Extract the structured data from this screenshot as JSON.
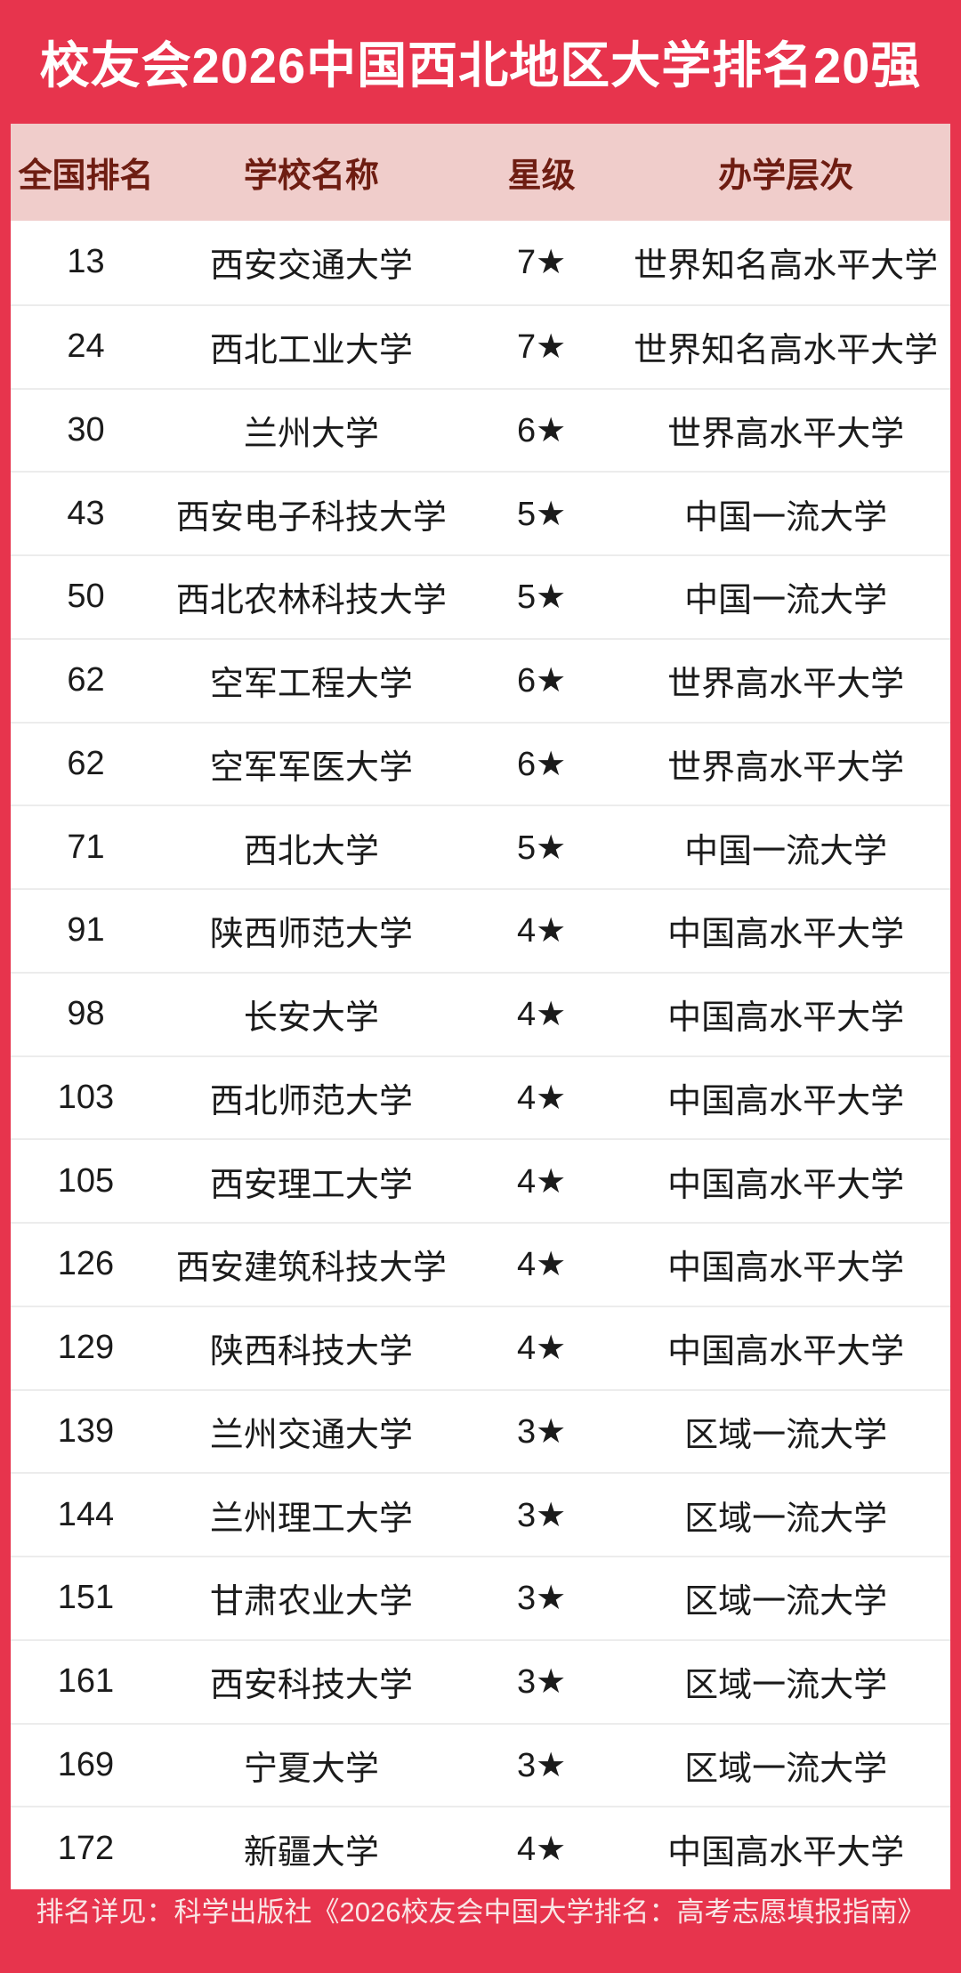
{
  "colors": {
    "primary_red": "#E7344D",
    "header_pink": "#F0CDCB",
    "header_text_maroon": "#6E1D12",
    "row_text": "#1B1B1B",
    "row_divider": "#ECECEC",
    "title_text": "#FFFFFF",
    "footer_text": "#F9E6E6"
  },
  "chart_data": {
    "type": "table",
    "title": "校友会2026中国西北地区大学排名20强",
    "columns": [
      "全国排名",
      "学校名称",
      "星级",
      "办学层次"
    ],
    "rows": [
      {
        "rank": "13",
        "name": "西安交通大学",
        "stars": "7★",
        "level": "世界知名高水平大学"
      },
      {
        "rank": "24",
        "name": "西北工业大学",
        "stars": "7★",
        "level": "世界知名高水平大学"
      },
      {
        "rank": "30",
        "name": "兰州大学",
        "stars": "6★",
        "level": "世界高水平大学"
      },
      {
        "rank": "43",
        "name": "西安电子科技大学",
        "stars": "5★",
        "level": "中国一流大学"
      },
      {
        "rank": "50",
        "name": "西北农林科技大学",
        "stars": "5★",
        "level": "中国一流大学"
      },
      {
        "rank": "62",
        "name": "空军工程大学",
        "stars": "6★",
        "level": "世界高水平大学"
      },
      {
        "rank": "62",
        "name": "空军军医大学",
        "stars": "6★",
        "level": "世界高水平大学"
      },
      {
        "rank": "71",
        "name": "西北大学",
        "stars": "5★",
        "level": "中国一流大学"
      },
      {
        "rank": "91",
        "name": "陕西师范大学",
        "stars": "4★",
        "level": "中国高水平大学"
      },
      {
        "rank": "98",
        "name": "长安大学",
        "stars": "4★",
        "level": "中国高水平大学"
      },
      {
        "rank": "103",
        "name": "西北师范大学",
        "stars": "4★",
        "level": "中国高水平大学"
      },
      {
        "rank": "105",
        "name": "西安理工大学",
        "stars": "4★",
        "level": "中国高水平大学"
      },
      {
        "rank": "126",
        "name": "西安建筑科技大学",
        "stars": "4★",
        "level": "中国高水平大学"
      },
      {
        "rank": "129",
        "name": "陕西科技大学",
        "stars": "4★",
        "level": "中国高水平大学"
      },
      {
        "rank": "139",
        "name": "兰州交通大学",
        "stars": "3★",
        "level": "区域一流大学"
      },
      {
        "rank": "144",
        "name": "兰州理工大学",
        "stars": "3★",
        "level": "区域一流大学"
      },
      {
        "rank": "151",
        "name": "甘肃农业大学",
        "stars": "3★",
        "level": "区域一流大学"
      },
      {
        "rank": "161",
        "name": "西安科技大学",
        "stars": "3★",
        "level": "区域一流大学"
      },
      {
        "rank": "169",
        "name": "宁夏大学",
        "stars": "3★",
        "level": "区域一流大学"
      },
      {
        "rank": "172",
        "name": "新疆大学",
        "stars": "4★",
        "level": "中国高水平大学"
      }
    ],
    "source_note": "排名详见：科学出版社《2026校友会中国大学排名：高考志愿填报指南》"
  }
}
